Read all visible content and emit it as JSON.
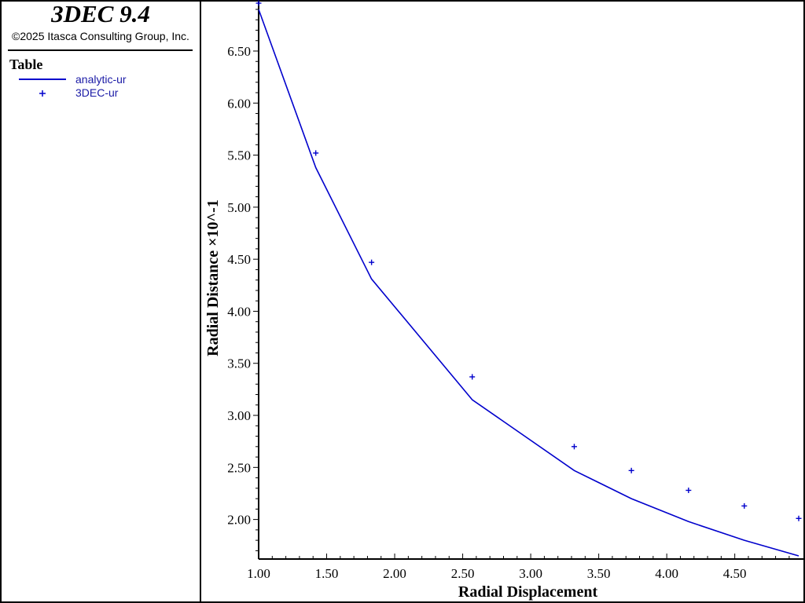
{
  "header": {
    "app_title": "3DEC 9.4",
    "copyright": "©2025 Itasca Consulting Group, Inc."
  },
  "legend": {
    "heading": "Table",
    "items": [
      {
        "label": "analytic-ur",
        "style": "line",
        "color": "#0000cc"
      },
      {
        "label": "3DEC-ur",
        "style": "plus",
        "color": "#0000cc"
      }
    ]
  },
  "chart_data": {
    "type": "line",
    "xlabel": "Radial Displacement",
    "ylabel": "Radial Distance ×10^-1",
    "xlim": [
      1.0,
      4.97
    ],
    "ylim": [
      1.62,
      6.96
    ],
    "xticks": [
      "1.00",
      "1.50",
      "2.00",
      "2.50",
      "3.00",
      "3.50",
      "4.00",
      "4.50"
    ],
    "yticks": [
      "2.00",
      "2.50",
      "3.00",
      "3.50",
      "4.00",
      "4.50",
      "5.00",
      "5.50",
      "6.00",
      "6.50"
    ],
    "series": [
      {
        "name": "analytic-ur",
        "marker": "line",
        "color": "#0000cc",
        "points": [
          [
            1.0,
            6.9
          ],
          [
            1.42,
            5.38
          ],
          [
            1.83,
            4.31
          ],
          [
            2.57,
            3.15
          ],
          [
            3.32,
            2.47
          ],
          [
            3.74,
            2.2
          ],
          [
            4.16,
            1.98
          ],
          [
            4.57,
            1.8
          ],
          [
            4.97,
            1.65
          ]
        ]
      },
      {
        "name": "3DEC-ur",
        "marker": "plus",
        "color": "#0000cc",
        "points": [
          [
            1.0,
            6.96
          ],
          [
            1.42,
            5.52
          ],
          [
            1.83,
            4.47
          ],
          [
            2.57,
            3.37
          ],
          [
            3.32,
            2.7
          ],
          [
            3.74,
            2.47
          ],
          [
            4.16,
            2.28
          ],
          [
            4.57,
            2.13
          ],
          [
            4.97,
            2.01
          ]
        ]
      }
    ]
  }
}
